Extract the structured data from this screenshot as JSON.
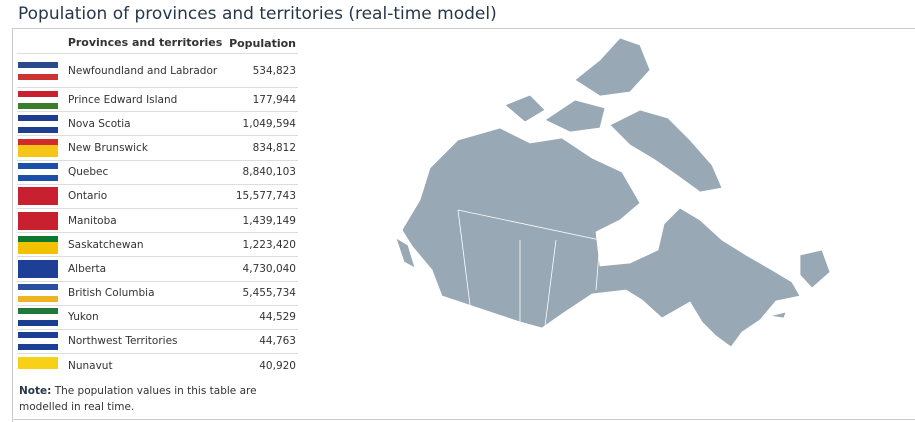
{
  "header": {
    "title": "Population of provinces and territories (real-time model)"
  },
  "table": {
    "columns": [
      "Provinces and territories",
      "Population"
    ],
    "rows": [
      [
        "Newfoundland and Labrador",
        "534,823"
      ],
      [
        "Prince Edward Island",
        "177,944"
      ],
      [
        "Nova Scotia",
        "1,049,594"
      ],
      [
        "New Brunswick",
        "834,812"
      ],
      [
        "Quebec",
        "8,840,103"
      ],
      [
        "Ontario",
        "15,577,743"
      ],
      [
        "Manitoba",
        "1,439,149"
      ],
      [
        "Saskatchewan",
        "1,223,420"
      ],
      [
        "Alberta",
        "4,730,040"
      ],
      [
        "British Columbia",
        "5,455,734"
      ],
      [
        "Yukon",
        "44,529"
      ],
      [
        "Northwest Territories",
        "44,763"
      ],
      [
        "Nunavut",
        "40,920"
      ]
    ]
  },
  "note": {
    "label": "Note:",
    "text": "The population values in this table are modelled in real time."
  }
}
